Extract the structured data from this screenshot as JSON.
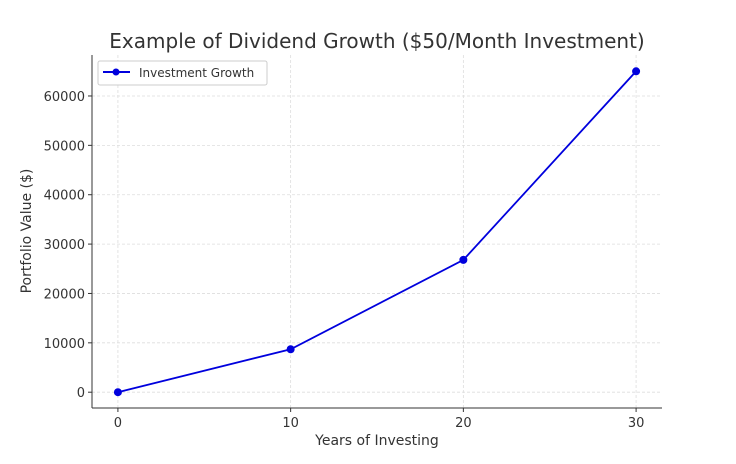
{
  "chart_data": {
    "type": "line",
    "title": "Example of Dividend Growth ($50/Month Investment)",
    "xlabel": "Years of Investing",
    "ylabel": "Portfolio Value ($)",
    "x": [
      0,
      10,
      20,
      30
    ],
    "series": [
      {
        "name": "Investment Growth",
        "values": [
          0,
          8700,
          26800,
          65000
        ],
        "color": "#0000dd",
        "marker": "circle"
      }
    ],
    "xlim": [
      -1.5,
      31.5
    ],
    "ylim": [
      -3200,
      68300
    ],
    "xticks": [
      0,
      10,
      20,
      30
    ],
    "xtick_labels": [
      "0",
      "10",
      "20",
      "30"
    ],
    "yticks": [
      0,
      10000,
      20000,
      30000,
      40000,
      50000,
      60000
    ],
    "ytick_labels": [
      "0",
      "10000",
      "20000",
      "30000",
      "40000",
      "50000",
      "60000"
    ],
    "grid": true,
    "legend_position": "top-left"
  }
}
